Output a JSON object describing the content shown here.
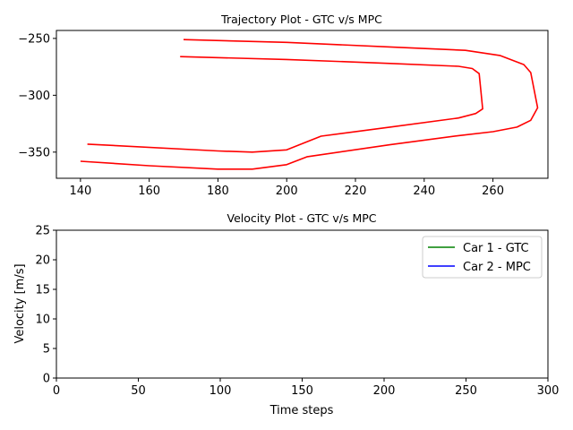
{
  "chart_data": [
    {
      "type": "line",
      "title": "Trajectory Plot - GTC v/s MPC",
      "xlabel": "",
      "ylabel": "",
      "xlim": [
        133,
        276
      ],
      "ylim": [
        -373,
        -243
      ],
      "xticks": [
        140,
        160,
        180,
        200,
        220,
        240,
        260
      ],
      "yticks": [
        -250,
        -300,
        -350
      ],
      "grid": false,
      "series": [
        {
          "color": "#ff0000",
          "points": [
            [
              170,
              -251
            ],
            [
              200,
              -253.5
            ],
            [
              230,
              -257.5
            ],
            [
              252,
              -260.5
            ],
            [
              262,
              -265
            ],
            [
              269,
              -273
            ],
            [
              271,
              -280
            ],
            [
              273,
              -311
            ],
            [
              271,
              -322
            ],
            [
              267,
              -328
            ],
            [
              260,
              -332
            ],
            [
              250,
              -335.5
            ],
            [
              230,
              -343.5
            ],
            [
              206,
              -354
            ],
            [
              200,
              -361
            ],
            [
              190,
              -365
            ],
            [
              180,
              -365
            ],
            [
              160,
              -362
            ],
            [
              140,
              -358
            ]
          ]
        },
        {
          "color": "#ff0000",
          "points": [
            [
              169,
              -266
            ],
            [
              200,
              -268.5
            ],
            [
              230,
              -272
            ],
            [
              250,
              -274.5
            ],
            [
              254,
              -276.5
            ],
            [
              256,
              -281
            ],
            [
              257,
              -312
            ],
            [
              255,
              -316
            ],
            [
              250,
              -320
            ],
            [
              230,
              -328
            ],
            [
              210,
              -336
            ],
            [
              200,
              -348
            ],
            [
              190,
              -350
            ],
            [
              180,
              -349
            ],
            [
              142,
              -343
            ]
          ]
        }
      ]
    },
    {
      "type": "line",
      "title": "Velocity Plot - GTC v/s MPC",
      "xlabel": "Time steps",
      "ylabel": "Velocity [m/s]",
      "xlim": [
        0,
        300
      ],
      "ylim": [
        0,
        25
      ],
      "xticks": [
        0,
        50,
        100,
        150,
        200,
        250,
        300
      ],
      "yticks": [
        0,
        5,
        10,
        15,
        20,
        25
      ],
      "grid": false,
      "legend_placement": "top-right",
      "series": [
        {
          "name": "Car 1 - GTC",
          "color": "#008000",
          "points": []
        },
        {
          "name": "Car 2 - MPC",
          "color": "#0000ff",
          "points": []
        }
      ]
    }
  ]
}
